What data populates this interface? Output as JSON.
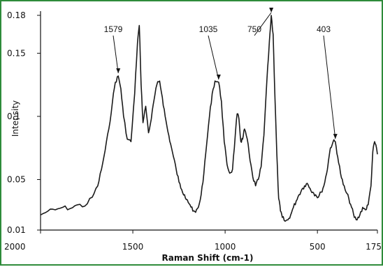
{
  "chart_data": {
    "type": "line",
    "title": "",
    "xlabel": "Raman Shift (cm-1)",
    "ylabel": "Intensity",
    "x_reversed": true,
    "xlim": [
      2000,
      175
    ],
    "ylim": [
      0.01,
      0.18
    ],
    "xticks": [
      2000,
      1500,
      1000,
      500,
      175
    ],
    "xtick_labels": [
      "2000",
      "1500",
      "1000",
      "500",
      "175"
    ],
    "yticks": [
      0.01,
      0.05,
      0.1,
      0.15,
      0.18
    ],
    "ytick_labels": [
      "0.01",
      "0.05",
      "0.1",
      "0.15",
      "0.18"
    ],
    "grid": false,
    "series": [
      {
        "color": "#1a1a1a",
        "x": [
          2000,
          1960,
          1920,
          1880,
          1840,
          1800,
          1760,
          1720,
          1690,
          1670,
          1650,
          1630,
          1610,
          1595,
          1579,
          1565,
          1550,
          1530,
          1510,
          1490,
          1475,
          1465,
          1455,
          1445,
          1430,
          1415,
          1400,
          1385,
          1370,
          1355,
          1340,
          1325,
          1310,
          1295,
          1280,
          1265,
          1250,
          1235,
          1220,
          1205,
          1190,
          1175,
          1160,
          1145,
          1130,
          1115,
          1100,
          1085,
          1070,
          1055,
          1035,
          1020,
          1005,
          990,
          975,
          960,
          945,
          935,
          925,
          915,
          905,
          895,
          880,
          865,
          850,
          835,
          820,
          805,
          790,
          775,
          760,
          750,
          740,
          730,
          720,
          710,
          700,
          690,
          675,
          660,
          645,
          630,
          615,
          600,
          585,
          570,
          555,
          540,
          525,
          510,
          495,
          480,
          465,
          450,
          440,
          430,
          415,
          403,
          390,
          375,
          360,
          345,
          330,
          315,
          300,
          285,
          270,
          255,
          240,
          225,
          210,
          200,
          190,
          180,
          175
        ],
        "y": [
          0.022,
          0.025,
          0.026,
          0.028,
          0.027,
          0.03,
          0.029,
          0.036,
          0.045,
          0.058,
          0.073,
          0.09,
          0.112,
          0.127,
          0.132,
          0.122,
          0.1,
          0.082,
          0.08,
          0.118,
          0.158,
          0.172,
          0.125,
          0.095,
          0.108,
          0.087,
          0.098,
          0.113,
          0.125,
          0.128,
          0.115,
          0.1,
          0.088,
          0.078,
          0.068,
          0.058,
          0.048,
          0.042,
          0.038,
          0.034,
          0.03,
          0.025,
          0.024,
          0.028,
          0.038,
          0.055,
          0.078,
          0.1,
          0.118,
          0.128,
          0.127,
          0.112,
          0.08,
          0.062,
          0.055,
          0.058,
          0.085,
          0.102,
          0.098,
          0.08,
          0.082,
          0.09,
          0.082,
          0.065,
          0.052,
          0.045,
          0.05,
          0.06,
          0.085,
          0.125,
          0.16,
          0.18,
          0.165,
          0.115,
          0.07,
          0.035,
          0.025,
          0.02,
          0.017,
          0.018,
          0.022,
          0.028,
          0.033,
          0.038,
          0.042,
          0.045,
          0.047,
          0.043,
          0.04,
          0.038,
          0.036,
          0.04,
          0.045,
          0.055,
          0.065,
          0.075,
          0.08,
          0.08,
          0.068,
          0.055,
          0.046,
          0.04,
          0.035,
          0.028,
          0.02,
          0.018,
          0.022,
          0.028,
          0.026,
          0.03,
          0.045,
          0.072,
          0.08,
          0.075,
          0.07
        ]
      }
    ],
    "annotations": [
      {
        "label": "1579",
        "x": 1579,
        "y": 0.132
      },
      {
        "label": "1035",
        "x": 1035,
        "y": 0.127
      },
      {
        "label": "750",
        "x": 750,
        "y": 0.18
      },
      {
        "label": "403",
        "x": 403,
        "y": 0.08
      }
    ]
  }
}
